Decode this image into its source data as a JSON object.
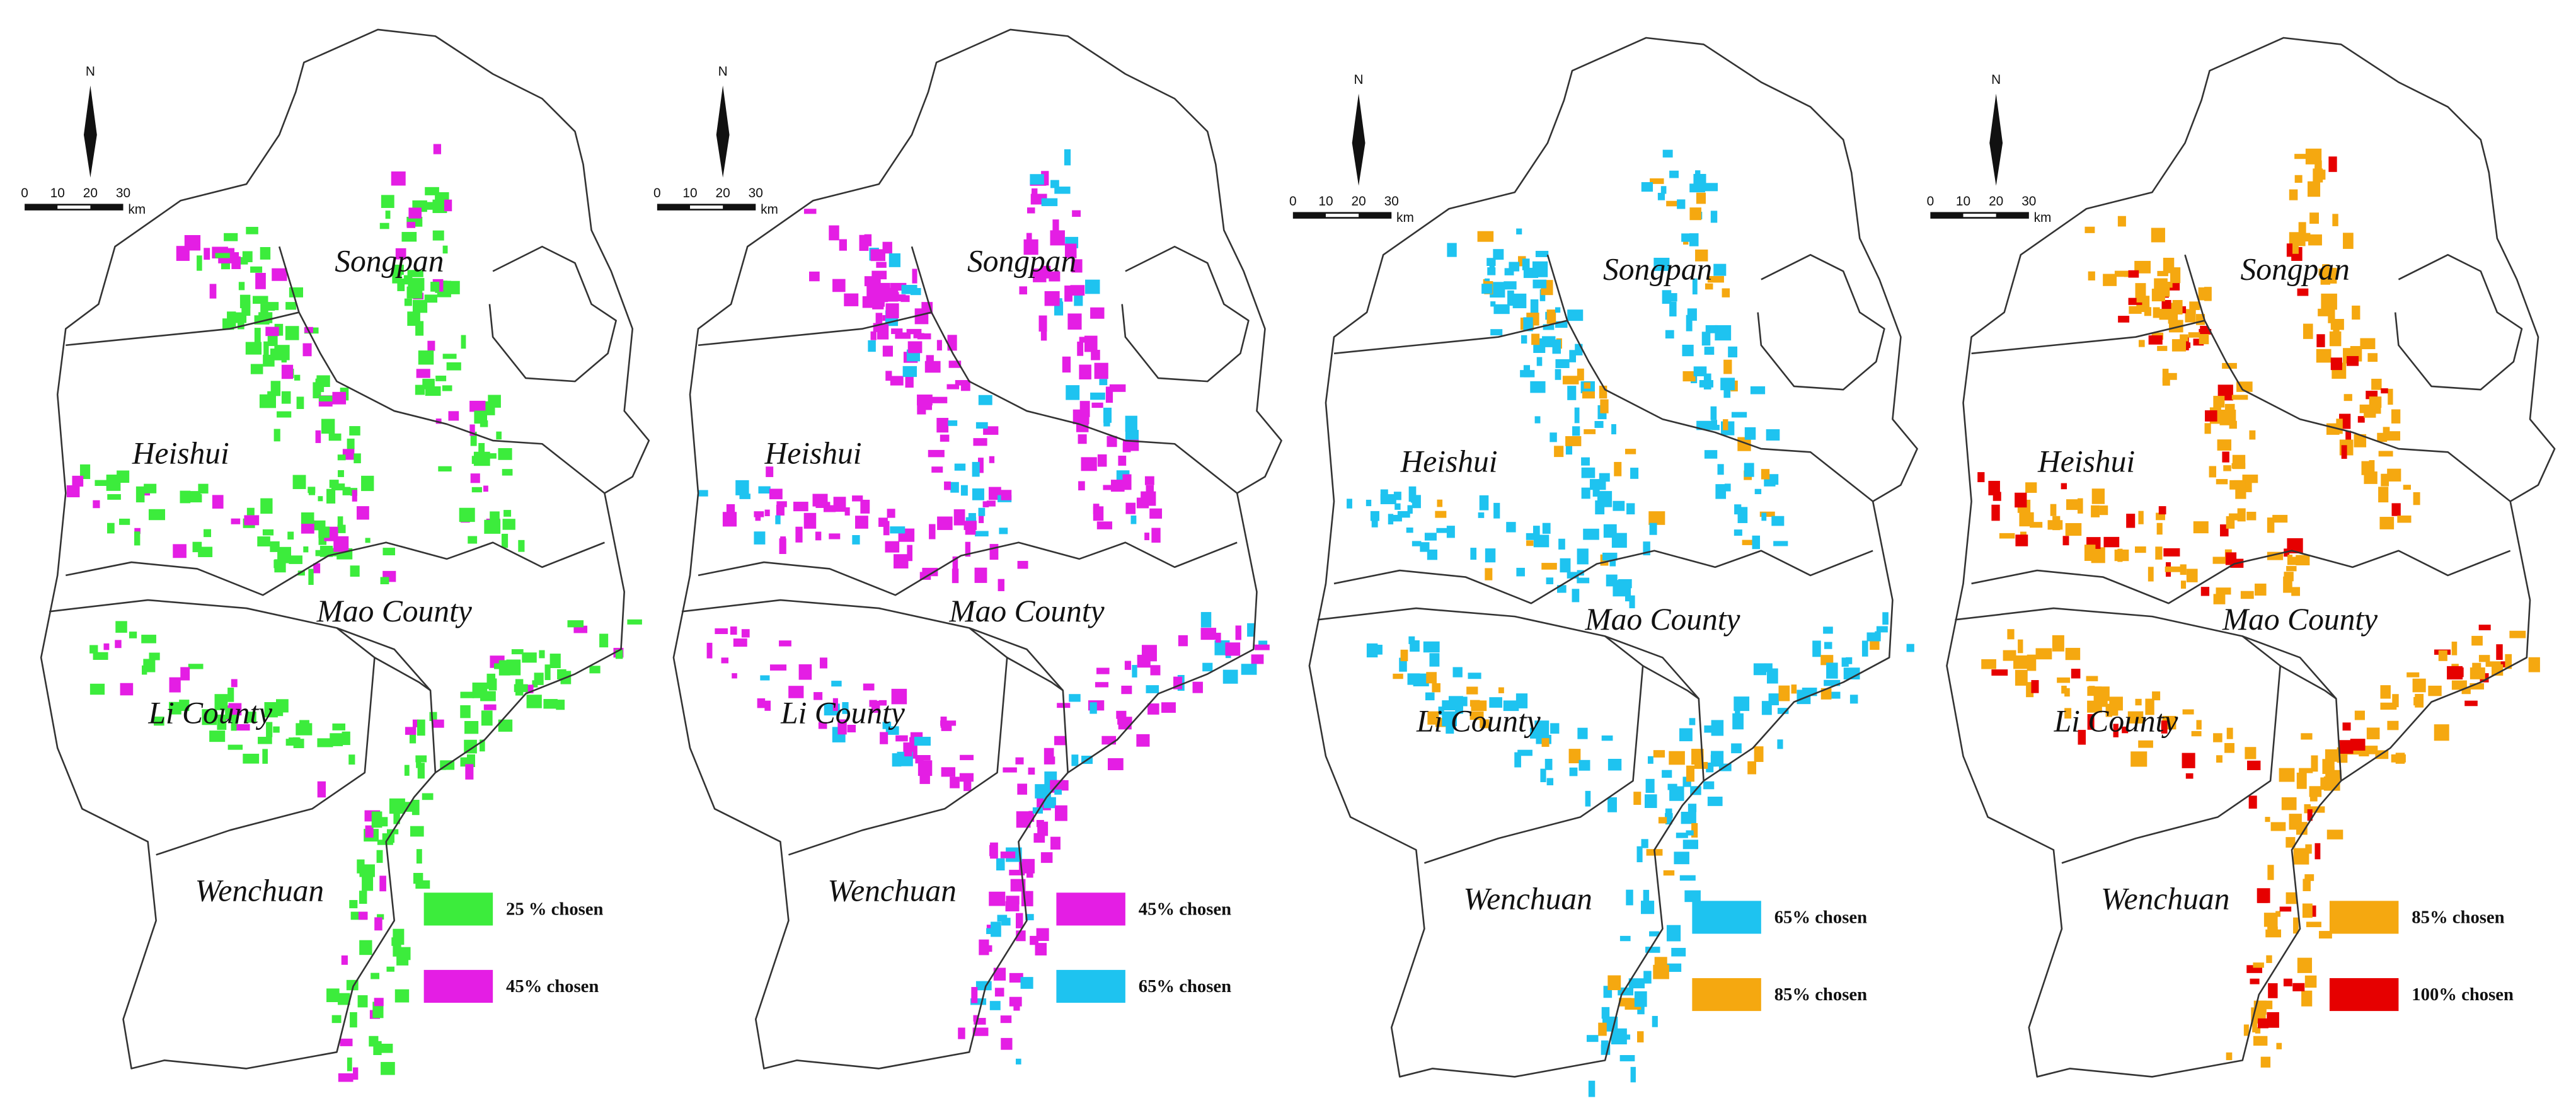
{
  "panels": [
    {
      "north": "N",
      "scale": [
        "0",
        "10",
        "20",
        "30",
        "km"
      ],
      "regions": [
        "Songpan",
        "Heishui",
        "Mao County",
        "Li County",
        "Wenchuan"
      ],
      "legend": [
        {
          "label": "25 % chosen",
          "color": "#3cec3c"
        },
        {
          "label": "45% chosen",
          "color": "#e41ee4"
        }
      ]
    },
    {
      "north": "N",
      "scale": [
        "0",
        "10",
        "20",
        "30",
        "km"
      ],
      "regions": [
        "Songpan",
        "Heishui",
        "Mao County",
        "Li County",
        "Wenchuan"
      ],
      "legend": [
        {
          "label": "45% chosen",
          "color": "#e41ee4"
        },
        {
          "label": "65% chosen",
          "color": "#1ec3f0"
        }
      ]
    },
    {
      "north": "N",
      "scale": [
        "0",
        "10",
        "20",
        "30",
        "km"
      ],
      "regions": [
        "Songpan",
        "Heishui",
        "Mao County",
        "Li County",
        "Wenchuan"
      ],
      "legend": [
        {
          "label": "65% chosen",
          "color": "#1ec3f0"
        },
        {
          "label": "85% chosen",
          "color": "#f5a810"
        }
      ]
    },
    {
      "north": "N",
      "scale": [
        "0",
        "10",
        "20",
        "30",
        "km"
      ],
      "regions": [
        "Songpan",
        "Heishui",
        "Mao County",
        "Li County",
        "Wenchuan"
      ],
      "legend": [
        {
          "label": "85% chosen",
          "color": "#f5a810"
        },
        {
          "label": "100% chosen",
          "color": "#e60000"
        }
      ]
    }
  ]
}
